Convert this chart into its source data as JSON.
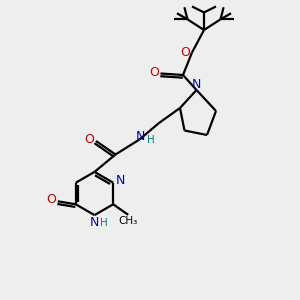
{
  "bg_color": "#eeeeee",
  "atom_colors": {
    "C": "#000000",
    "N": "#0000cc",
    "O": "#cc0000",
    "H": "#008080"
  },
  "bond_color": "#000000",
  "figsize": [
    3.0,
    3.0
  ],
  "dpi": 100
}
